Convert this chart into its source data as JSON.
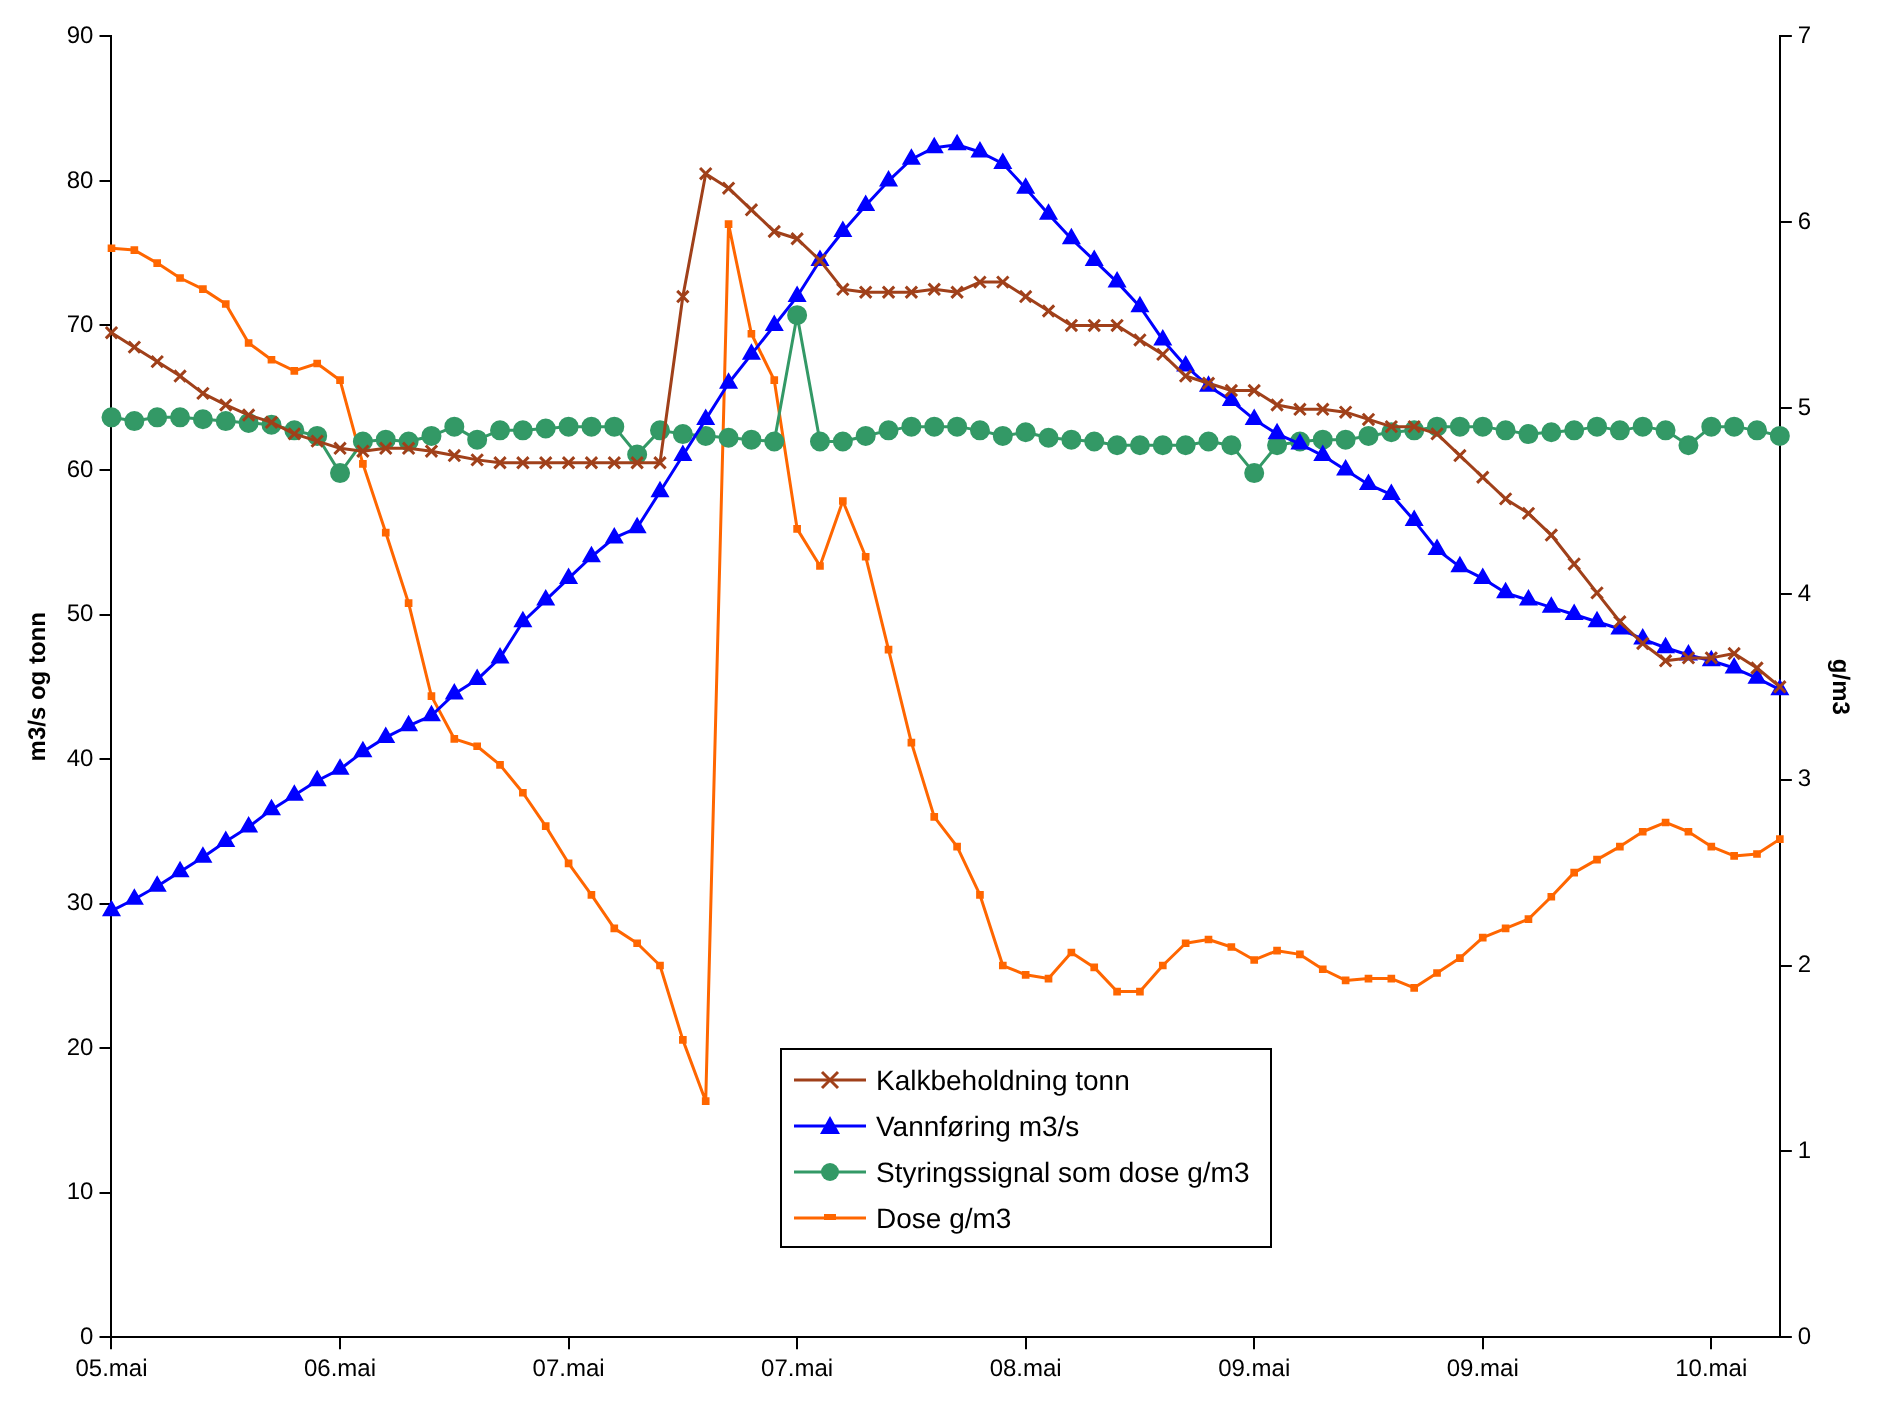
{
  "chart_data": {
    "type": "line",
    "categories": [
      "05.mai",
      null,
      null,
      null,
      null,
      null,
      null,
      null,
      null,
      null,
      "06.mai",
      null,
      null,
      null,
      null,
      null,
      null,
      null,
      null,
      null,
      "07.mai",
      null,
      null,
      null,
      null,
      null,
      null,
      null,
      null,
      null,
      "07.mai",
      null,
      null,
      null,
      null,
      null,
      null,
      null,
      null,
      null,
      "08.mai",
      null,
      null,
      null,
      null,
      null,
      null,
      null,
      null,
      null,
      "09.mai",
      null,
      null,
      null,
      null,
      null,
      null,
      null,
      null,
      null,
      "09.mai",
      null,
      null,
      null,
      null,
      null,
      null,
      null,
      null,
      null,
      "10.mai",
      null,
      null,
      null
    ],
    "ylabel": "m3/s og tonn",
    "y2label": "g/m3",
    "ylim": [
      0,
      90
    ],
    "yticks": [
      0,
      10,
      20,
      30,
      40,
      50,
      60,
      70,
      80,
      90
    ],
    "y2lim": [
      0,
      7
    ],
    "y2ticks": [
      0,
      1,
      2,
      3,
      4,
      5,
      6,
      7
    ],
    "grid": false,
    "legend": "bottom",
    "line_style": "solid",
    "series": [
      {
        "name": "Kalkbeholdning tonn",
        "color": "#a0401a",
        "marker": "cross",
        "values": [
          69.5,
          68.5,
          67.5,
          66.5,
          65.3,
          64.5,
          63.8,
          63.3,
          62.5,
          62,
          61.5,
          61.3,
          61.5,
          61.5,
          61.3,
          61,
          60.7,
          60.5,
          60.5,
          60.5,
          60.5,
          60.5,
          60.5,
          60.5,
          60.5,
          72,
          80.5,
          79.5,
          78,
          76.5,
          76,
          74.5,
          72.5,
          72.3,
          72.3,
          72.3,
          72.5,
          72.3,
          73,
          73,
          72,
          71,
          70,
          70,
          70,
          69,
          68,
          66.5,
          66,
          65.5,
          65.5,
          64.5,
          64.2,
          64.2,
          64,
          63.5,
          63,
          63,
          62.5,
          61,
          59.5,
          58,
          57,
          55.5,
          53.5,
          51.5,
          49.5,
          48,
          46.8,
          47,
          47,
          47.3,
          46.3,
          45
        ]
      },
      {
        "name": "Vannføring m3/s",
        "color": "#0000ff",
        "marker": "triangle",
        "values": [
          29.5,
          30.3,
          31.2,
          32.2,
          33.2,
          34.3,
          35.3,
          36.5,
          37.5,
          38.5,
          39.3,
          40.5,
          41.5,
          42.3,
          43,
          44.5,
          45.5,
          47,
          49.5,
          51,
          52.5,
          54,
          55.3,
          56,
          58.5,
          61,
          63.5,
          66,
          68,
          70,
          72,
          74.5,
          76.5,
          78.3,
          80,
          81.5,
          82.3,
          82.5,
          82,
          81.2,
          79.5,
          77.7,
          76,
          74.5,
          73,
          71.3,
          69,
          67.2,
          65.8,
          64.8,
          63.5,
          62.5,
          61.8,
          61,
          60,
          59,
          58.3,
          56.5,
          54.5,
          53.3,
          52.5,
          51.5,
          51,
          50.5,
          50,
          49.5,
          49,
          48.3,
          47.7,
          47.2,
          46.8,
          46.3,
          45.6,
          44.8
        ]
      },
      {
        "name": "Styringssignal som dose g/m3",
        "color": "#339966",
        "marker": "circle",
        "axis": "y2",
        "values": [
          4.95,
          4.93,
          4.95,
          4.95,
          4.94,
          4.93,
          4.92,
          4.91,
          4.88,
          4.85,
          4.65,
          4.82,
          4.83,
          4.82,
          4.85,
          4.9,
          4.83,
          4.88,
          4.88,
          4.89,
          4.9,
          4.9,
          4.9,
          4.75,
          4.88,
          4.86,
          4.85,
          4.84,
          4.83,
          4.82,
          5.5,
          4.82,
          4.82,
          4.85,
          4.88,
          4.9,
          4.9,
          4.9,
          4.88,
          4.85,
          4.87,
          4.84,
          4.83,
          4.82,
          4.8,
          4.8,
          4.8,
          4.8,
          4.82,
          4.8,
          4.65,
          4.8,
          4.82,
          4.83,
          4.83,
          4.85,
          4.87,
          4.88,
          4.9,
          4.9,
          4.9,
          4.88,
          4.86,
          4.87,
          4.88,
          4.9,
          4.88,
          4.9,
          4.88,
          4.8,
          4.9,
          4.9,
          4.88,
          4.85
        ]
      },
      {
        "name": "Dose g/m3",
        "color": "#ff6600",
        "marker": "square",
        "axis": "y2",
        "values": [
          5.86,
          5.85,
          5.78,
          5.7,
          5.64,
          5.56,
          5.35,
          5.26,
          5.2,
          5.24,
          5.15,
          4.7,
          4.33,
          3.95,
          3.45,
          3.22,
          3.18,
          3.08,
          2.93,
          2.75,
          2.55,
          2.38,
          2.2,
          2.12,
          2.0,
          1.6,
          1.27,
          5.99,
          5.4,
          5.15,
          4.35,
          4.15,
          4.5,
          4.2,
          3.7,
          3.2,
          2.8,
          2.64,
          2.38,
          2.0,
          1.95,
          1.93,
          2.07,
          1.99,
          1.86,
          1.86,
          2.0,
          2.12,
          2.14,
          2.1,
          2.03,
          2.08,
          2.06,
          1.98,
          1.92,
          1.93,
          1.93,
          1.88,
          1.96,
          2.04,
          2.15,
          2.2,
          2.25,
          2.37,
          2.5,
          2.57,
          2.64,
          2.72,
          2.77,
          2.72,
          2.64,
          2.59,
          2.6,
          2.68
        ]
      }
    ]
  }
}
